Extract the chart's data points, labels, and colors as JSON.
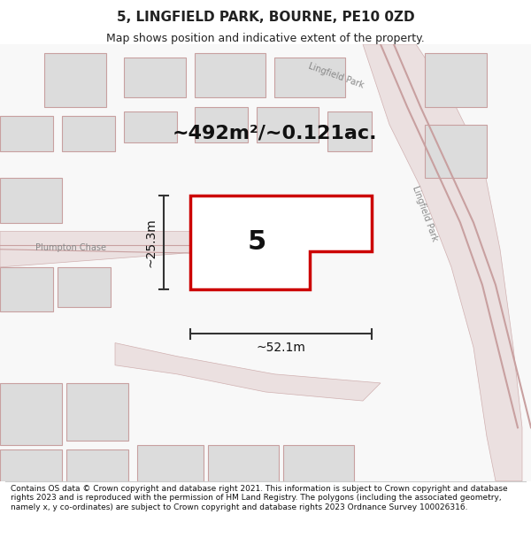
{
  "title": "5, LINGFIELD PARK, BOURNE, PE10 0ZD",
  "subtitle": "Map shows position and indicative extent of the property.",
  "area_text": "~492m²/~0.121ac.",
  "plot_number": "5",
  "dim_width": "~52.1m",
  "dim_height": "~25.3m",
  "street_label_left": "Plumpton Chase",
  "street_label_right": "Lingfield Park",
  "street_label_top": "Lingfield Park",
  "copyright_text": "Contains OS data © Crown copyright and database right 2021. This information is subject to Crown copyright and database rights 2023 and is reproduced with the permission of HM Land Registry. The polygons (including the associated geometry, namely x, y co-ordinates) are subject to Crown copyright and database rights 2023 Ordnance Survey 100026316.",
  "bg_color": "#f5f5f5",
  "map_bg": "#ffffff",
  "road_fill": "#e8e8e8",
  "building_fill": "#d8d8d8",
  "plot_outline_color": "#cc0000",
  "plot_fill": "#ffffff",
  "road_line_color": "#c0a0a0",
  "dim_line_color": "#333333",
  "text_color": "#222222",
  "light_road_color": "#e0c8c8"
}
